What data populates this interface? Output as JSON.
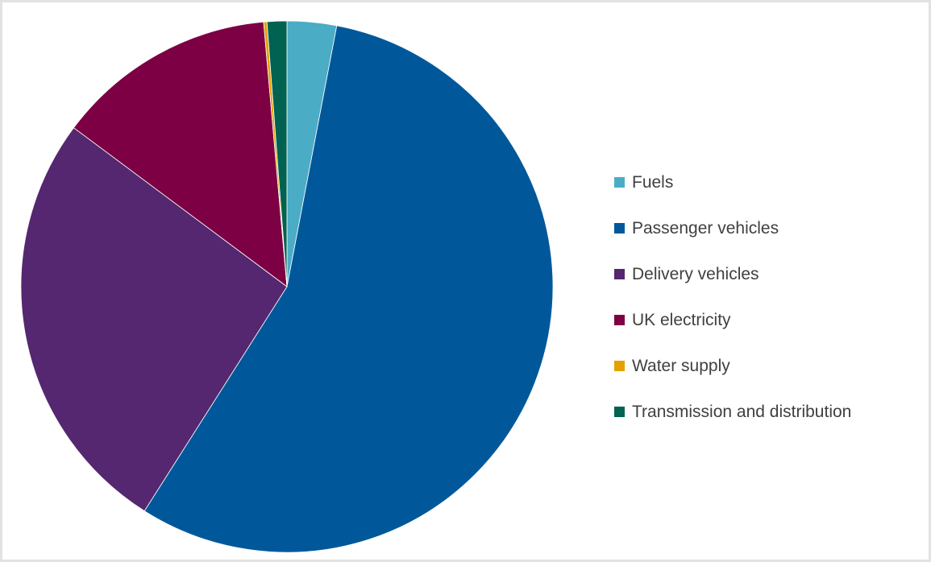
{
  "chart_data": {
    "type": "pie",
    "title": "",
    "categories": [
      "Fuels",
      "Passenger vehicles",
      "Delivery vehicles",
      "UK electricity",
      "Water supply",
      "Transmission and distribution"
    ],
    "values": [
      3.0,
      56.0,
      26.2,
      13.4,
      0.2,
      1.2
    ],
    "unit": "%",
    "start_angle_deg": 0,
    "direction": "clockwise",
    "legend_position": "right",
    "colors": [
      "#4BACC6",
      "#00589A",
      "#542770",
      "#7C0043",
      "#E5A000",
      "#006251"
    ]
  }
}
